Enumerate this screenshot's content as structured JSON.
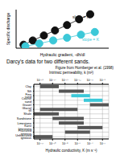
{
  "chart_data": [
    {
      "type": "scatter",
      "x_label": "Hydraulic gradient, -dh/dl",
      "y_label": "Specific discharge",
      "xlim": [
        0,
        1
      ],
      "ylim": [
        0,
        1
      ],
      "tick_labels": false,
      "grid": false,
      "series": [
        {
          "color": "#111111",
          "marker": "circle",
          "line_style": "solid",
          "x": [
            0.08,
            0.18,
            0.3,
            0.42,
            0.55,
            0.68,
            0.8
          ],
          "values": [
            0.09,
            0.2,
            0.33,
            0.46,
            0.6,
            0.75,
            0.88
          ]
        },
        {
          "color": "#3cc8d8",
          "marker": "circle",
          "line_style": "solid",
          "x": [
            0.1,
            0.25,
            0.4,
            0.55,
            0.7,
            0.85
          ],
          "values": [
            0.05,
            0.12,
            0.2,
            0.27,
            0.35,
            0.42
          ]
        }
      ],
      "annotations": [
        "slope = K",
        "slope = K"
      ],
      "caption": "Darcy's data for two different sands."
    },
    {
      "type": "bar",
      "orientation": "horizontal",
      "log": "x",
      "grid": true,
      "source": "Figure from Hornberger et al. (1998)",
      "x_label": "Hydraulic conductivity, K (m s⁻¹)",
      "x2_label": "Intrinsic permeability, k (m²)",
      "categories": [
        "Clay",
        "Silt",
        "Fine sand",
        "Coarse sand",
        "Gravel",
        "Glacial till",
        "Shale",
        "Sandstone",
        "Limestone",
        "Karst limestone",
        "Fractured igneous",
        "Unfractured igneous"
      ],
      "values": [
        [
          1e-12,
          1e-09
        ],
        [
          1e-09,
          1e-05
        ],
        [
          1e-07,
          0.0001
        ],
        [
          1e-05,
          0.01
        ],
        [
          0.0001,
          0.1
        ],
        [
          1e-12,
          1e-06
        ],
        [
          1e-13,
          1e-09
        ],
        [
          1e-10,
          1e-05
        ],
        [
          1e-09,
          1e-05
        ],
        [
          1e-06,
          0.01
        ],
        [
          1e-08,
          0.0001
        ],
        [
          1e-13,
          1e-10
        ]
      ],
      "colors": [
        "#555555",
        "#555555",
        "#3cc8d8",
        "#3cc8d8",
        "#555555",
        "#555555",
        "#555555",
        "#555555",
        "#555555",
        "#555555",
        "#555555",
        "#555555"
      ],
      "xlim": [
        1e-13,
        0.1
      ],
      "xticks": [
        {
          "value": 1e-12,
          "label": "10⁻¹²"
        },
        {
          "value": 1e-10,
          "label": "10⁻¹⁰"
        },
        {
          "value": 1e-08,
          "label": "10⁻⁸"
        },
        {
          "value": 1e-06,
          "label": "10⁻⁶"
        },
        {
          "value": 0.0001,
          "label": "10⁻⁴"
        },
        {
          "value": 0.01,
          "label": "10⁻²"
        }
      ],
      "x2lim": [
        1e-20,
        1e-08
      ],
      "x2ticks": [
        {
          "value": 1e-19,
          "label": "10⁻¹⁹"
        },
        {
          "value": 1e-17,
          "label": "10⁻¹⁷"
        },
        {
          "value": 1e-15,
          "label": "10⁻¹⁵"
        },
        {
          "value": 1e-13,
          "label": "10⁻¹³"
        },
        {
          "value": 1e-11,
          "label": "10⁻¹¹"
        },
        {
          "value": 1e-09,
          "label": "10⁻⁹"
        }
      ]
    }
  ]
}
